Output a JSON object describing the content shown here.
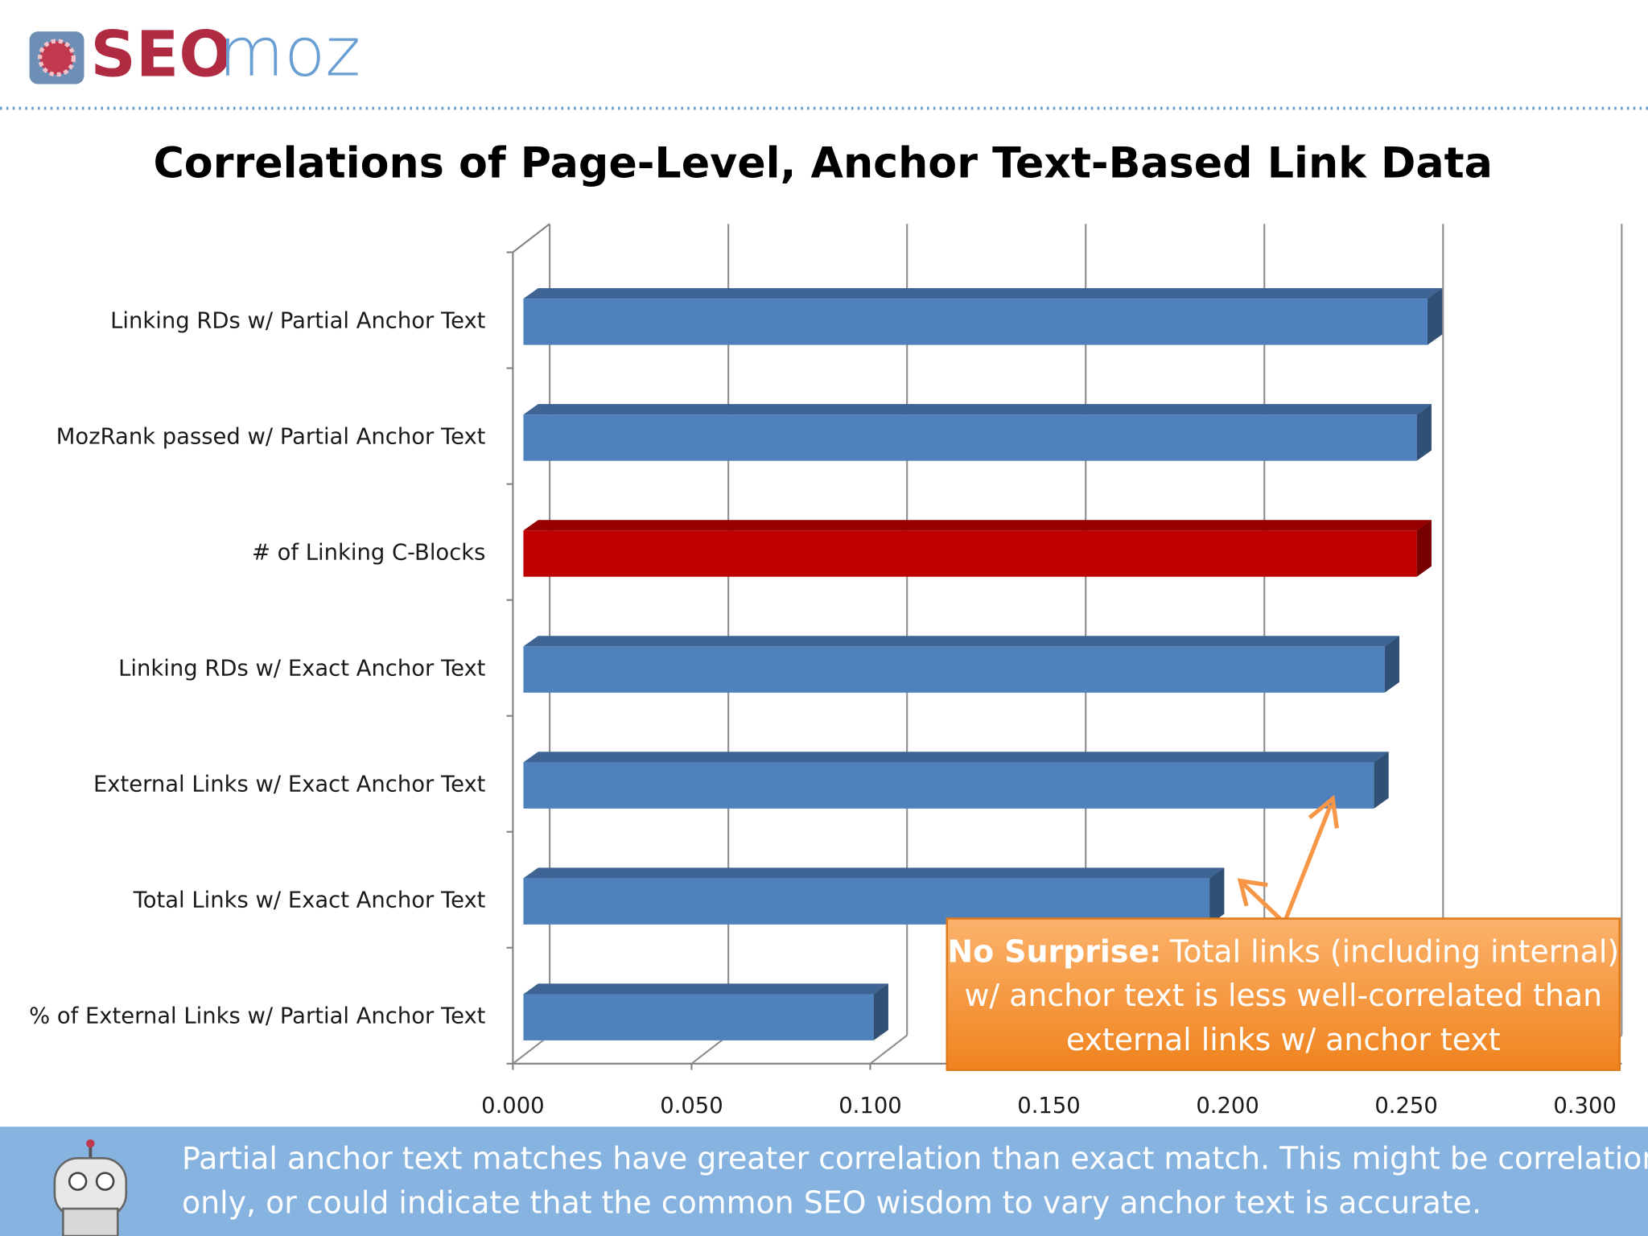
{
  "header": {
    "logo_bold": "SEO",
    "logo_light": "moz"
  },
  "chart_data": {
    "type": "bar",
    "orientation": "horizontal",
    "three_d": true,
    "title": "Correlations of Page-Level, Anchor Text-Based Link Data",
    "categories": [
      "Linking RDs w/ Partial Anchor Text",
      "MozRank passed w/ Partial Anchor Text",
      "# of Linking C-Blocks",
      "Linking RDs w/ Exact Anchor Text",
      "External Links w/ Exact Anchor Text",
      "Total Links w/ Exact Anchor Text",
      "% of External Links w/ Partial Anchor Text"
    ],
    "values": [
      0.253,
      0.25,
      0.25,
      0.241,
      0.238,
      0.192,
      0.098
    ],
    "colors": [
      "#4f81bd",
      "#4f81bd",
      "#c00000",
      "#4f81bd",
      "#4f81bd",
      "#4f81bd",
      "#4f81bd"
    ],
    "xlim": [
      0,
      0.3
    ],
    "xticks": [
      {
        "value": 0,
        "label": "0.000"
      },
      {
        "value": 0.05,
        "label": "0.050"
      },
      {
        "value": 0.1,
        "label": "0.100"
      },
      {
        "value": 0.15,
        "label": "0.150"
      },
      {
        "value": 0.2,
        "label": "0.200"
      },
      {
        "value": 0.25,
        "label": "0.250"
      },
      {
        "value": 0.3,
        "label": "0.300"
      }
    ],
    "grid": true,
    "annotation": {
      "heading": "No Surprise:",
      "lines": [
        "Total links (including internal)",
        "w/ anchor text is less well-correlated than",
        "external links w/ anchor text"
      ]
    }
  },
  "footer": {
    "lines": [
      "Partial anchor text matches have greater correlation than exact match. This might be correlation",
      "only, or could indicate that the common SEO wisdom to vary anchor text is accurate."
    ]
  }
}
